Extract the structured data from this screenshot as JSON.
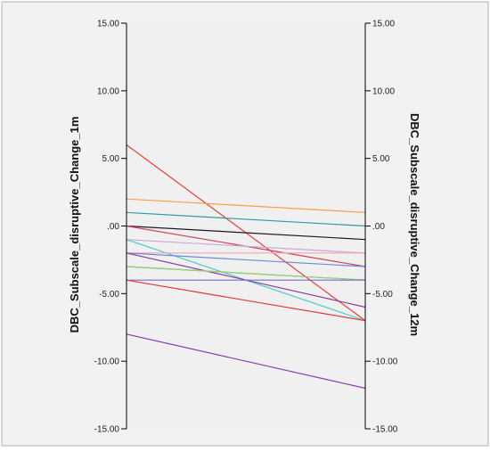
{
  "chart_data": {
    "type": "line",
    "subtype": "parallel-coordinates",
    "left_axis_label": "DBC_Subscale_disruptive_Change_1m",
    "right_axis_label": "DBC_Subscale_disruptive_Change_12m",
    "ylim": [
      -15,
      15
    ],
    "ticks": [
      15,
      10,
      5,
      0,
      -5,
      -10,
      -15
    ],
    "tick_labels": [
      "15.00",
      "10.00",
      "5.00",
      ".00",
      "-5.00",
      "-10.00",
      "-15.00"
    ],
    "grid": false,
    "legend": "none",
    "colors": {
      "frame": "#b0b0b0",
      "plot_background": "#f0f0f0",
      "axis": "#000000"
    },
    "series": [
      {
        "values": [
          6,
          -7
        ],
        "color": "#e8413a"
      },
      {
        "values": [
          2,
          1
        ],
        "color": "#f5a043"
      },
      {
        "values": [
          1,
          0
        ],
        "color": "#2a9aa6"
      },
      {
        "values": [
          0,
          -1
        ],
        "color": "#1a1a1a"
      },
      {
        "values": [
          0,
          -3
        ],
        "color": "#d0405a"
      },
      {
        "values": [
          -1,
          -2
        ],
        "color": "#c9a8d8"
      },
      {
        "values": [
          -1,
          -7
        ],
        "color": "#48c9d4"
      },
      {
        "values": [
          -2,
          -2
        ],
        "color": "#f2a6b2"
      },
      {
        "values": [
          -2,
          -3
        ],
        "color": "#6a8ad6"
      },
      {
        "values": [
          -2,
          -6
        ],
        "color": "#8c3c9c"
      },
      {
        "values": [
          -3,
          -4
        ],
        "color": "#38a84c"
      },
      {
        "values": [
          -3,
          -4
        ],
        "color": "#9bd17a"
      },
      {
        "values": [
          -4,
          -4
        ],
        "color": "#7a6ac8"
      },
      {
        "values": [
          -4,
          -7
        ],
        "color": "#e0383a"
      },
      {
        "values": [
          -8,
          -12
        ],
        "color": "#8a3cb0"
      }
    ]
  }
}
